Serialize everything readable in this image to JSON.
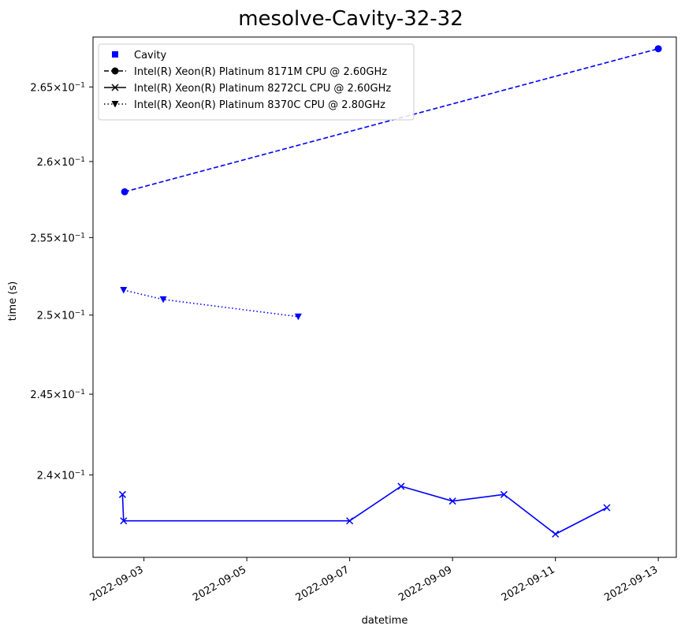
{
  "chart_data": {
    "type": "line",
    "title": "mesolve-Cavity-32-32",
    "xlabel": "datetime",
    "ylabel": "time (s)",
    "yscale": "log",
    "xlim": [
      "2022-09-02T00:14",
      "2022-09-13T08:24"
    ],
    "ylim": [
      0.235,
      0.2684
    ],
    "grid": false,
    "legend_position": "top-left",
    "x_ticks": [
      {
        "value": "2022-09-03",
        "label": "2022-09-03"
      },
      {
        "value": "2022-09-05",
        "label": "2022-09-05"
      },
      {
        "value": "2022-09-07",
        "label": "2022-09-07"
      },
      {
        "value": "2022-09-09",
        "label": "2022-09-09"
      },
      {
        "value": "2022-09-11",
        "label": "2022-09-11"
      },
      {
        "value": "2022-09-13",
        "label": "2022-09-13"
      }
    ],
    "y_ticks": [
      {
        "value": 0.24,
        "mantissa": "2.4",
        "exp": "−1"
      },
      {
        "value": 0.245,
        "mantissa": "2.45",
        "exp": "−1"
      },
      {
        "value": 0.25,
        "mantissa": "2.5",
        "exp": "−1"
      },
      {
        "value": 0.255,
        "mantissa": "2.55",
        "exp": "−1"
      },
      {
        "value": 0.26,
        "mantissa": "2.6",
        "exp": "−1"
      },
      {
        "value": 0.265,
        "mantissa": "2.65",
        "exp": "−1"
      }
    ],
    "legend": [
      {
        "label": "Cavity",
        "marker": "square",
        "line": "none"
      },
      {
        "label": "Intel(R) Xeon(R) Platinum 8171M CPU @ 2.60GHz",
        "marker": "circle",
        "line": "dashed"
      },
      {
        "label": "Intel(R) Xeon(R) Platinum 8272CL CPU @ 2.60GHz",
        "marker": "x",
        "line": "solid"
      },
      {
        "label": "Intel(R) Xeon(R) Platinum 8370C CPU @ 2.80GHz",
        "marker": "triangle-down",
        "line": "dotted"
      }
    ],
    "series": [
      {
        "name": "Intel(R) Xeon(R) Platinum 8171M CPU @ 2.60GHz",
        "color": "#0000ff",
        "marker": "circle",
        "line": "dashed",
        "points": [
          {
            "x": "2022-09-02T15:00",
            "y": 0.258
          },
          {
            "x": "2022-09-13T00:00",
            "y": 0.2676
          }
        ]
      },
      {
        "name": "Intel(R) Xeon(R) Platinum 8272CL CPU @ 2.60GHz",
        "color": "#0000ff",
        "marker": "x",
        "line": "solid",
        "points": [
          {
            "x": "2022-09-02T14:00",
            "y": 0.2388
          },
          {
            "x": "2022-09-02T14:30",
            "y": 0.2372
          },
          {
            "x": "2022-09-07T00:00",
            "y": 0.2372
          },
          {
            "x": "2022-09-08T00:00",
            "y": 0.2393
          },
          {
            "x": "2022-09-09T00:00",
            "y": 0.2384
          },
          {
            "x": "2022-09-10T00:00",
            "y": 0.2388
          },
          {
            "x": "2022-09-11T00:00",
            "y": 0.2364
          },
          {
            "x": "2022-09-12T00:00",
            "y": 0.238
          }
        ]
      },
      {
        "name": "Intel(R) Xeon(R) Platinum 8370C CPU @ 2.80GHz",
        "color": "#0000ff",
        "marker": "triangle-down",
        "line": "dotted",
        "points": [
          {
            "x": "2022-09-02T14:30",
            "y": 0.2516
          },
          {
            "x": "2022-09-03T09:00",
            "y": 0.251
          },
          {
            "x": "2022-09-06T00:00",
            "y": 0.2499
          }
        ]
      }
    ]
  }
}
